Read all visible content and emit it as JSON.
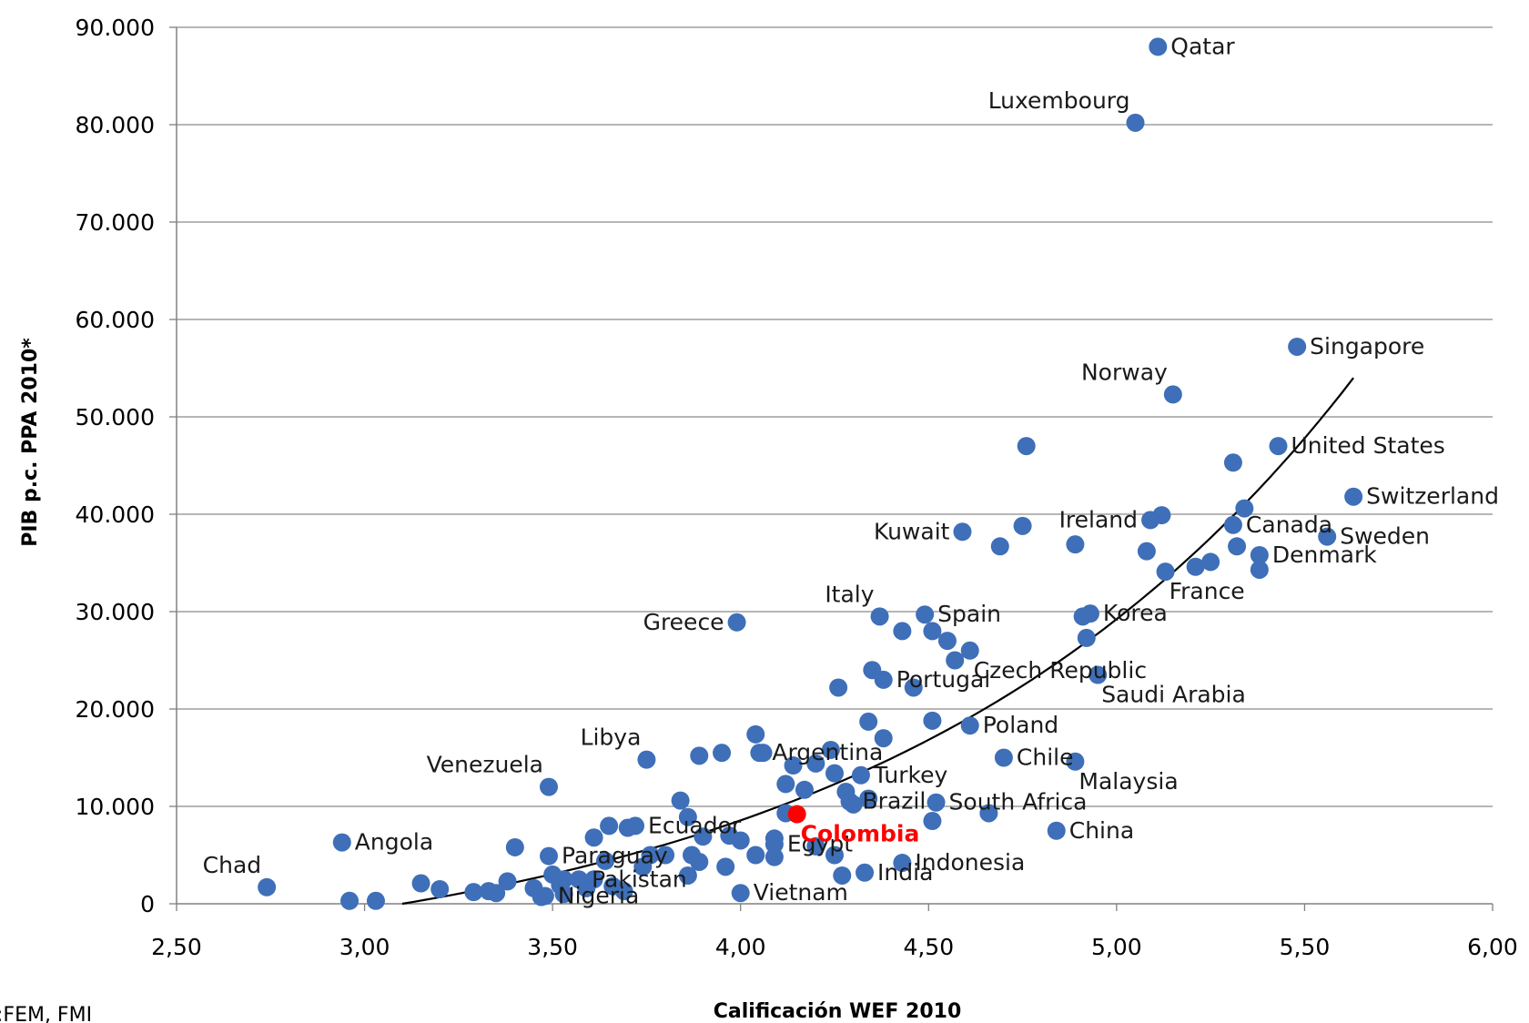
{
  "chart_data": {
    "type": "scatter",
    "xlabel": "Calificación WEF 2010",
    "ylabel": "PIB p.c. PPA 2010*",
    "source_note": ":FEM, FMI",
    "xlim": [
      2.5,
      6.0
    ],
    "ylim": [
      0,
      90000
    ],
    "x_ticks": [
      "2,50",
      "3,00",
      "3,50",
      "4,00",
      "4,50",
      "5,00",
      "5,50",
      "6,00"
    ],
    "x_tick_values": [
      2.5,
      3.0,
      3.5,
      4.0,
      4.5,
      5.0,
      5.5,
      6.0
    ],
    "y_ticks": [
      "0",
      "10.000",
      "20.000",
      "30.000",
      "40.000",
      "50.000",
      "60.000",
      "70.000",
      "80.000",
      "90.000"
    ],
    "y_tick_values": [
      0,
      10000,
      20000,
      30000,
      40000,
      50000,
      60000,
      70000,
      80000,
      90000
    ],
    "grid": "horizontal",
    "point_color": "#3E6FB8",
    "highlight_color": "#FF0000",
    "trend_color": "#000000",
    "trend": {
      "type": "exponential",
      "x_from": 3.1,
      "x_to": 5.63,
      "y_from": 0,
      "y_to": 54000
    },
    "labeled_points": [
      {
        "label": "Qatar",
        "x": 5.11,
        "y": 88000,
        "anchor": "right"
      },
      {
        "label": "Luxembourg",
        "x": 5.05,
        "y": 80200,
        "anchor": "above-left"
      },
      {
        "label": "Singapore",
        "x": 5.48,
        "y": 57200,
        "anchor": "right"
      },
      {
        "label": "Norway",
        "x": 5.15,
        "y": 52300,
        "anchor": "above-left"
      },
      {
        "label": "United States",
        "x": 5.43,
        "y": 47000,
        "anchor": "right"
      },
      {
        "label": "Switzerland",
        "x": 5.63,
        "y": 41800,
        "anchor": "right"
      },
      {
        "label": "Kuwait",
        "x": 4.59,
        "y": 38200,
        "anchor": "left"
      },
      {
        "label": "Ireland",
        "x": 5.09,
        "y": 39400,
        "anchor": "left"
      },
      {
        "label": "Canada",
        "x": 5.31,
        "y": 38900,
        "anchor": "right"
      },
      {
        "label": "Sweden",
        "x": 5.56,
        "y": 37700,
        "anchor": "right"
      },
      {
        "label": "Denmark",
        "x": 5.38,
        "y": 35800,
        "anchor": "right"
      },
      {
        "label": "France",
        "x": 5.13,
        "y": 34100,
        "anchor": "below-right"
      },
      {
        "label": "Italy",
        "x": 4.37,
        "y": 29500,
        "anchor": "above-left"
      },
      {
        "label": "Spain",
        "x": 4.49,
        "y": 29700,
        "anchor": "right"
      },
      {
        "label": "Greece",
        "x": 3.99,
        "y": 28900,
        "anchor": "left"
      },
      {
        "label": "Korea",
        "x": 4.93,
        "y": 29800,
        "anchor": "right"
      },
      {
        "label": "Czech Republic",
        "x": 4.61,
        "y": 26000,
        "anchor": "below-right"
      },
      {
        "label": "Saudi Arabia",
        "x": 4.95,
        "y": 23500,
        "anchor": "below-right"
      },
      {
        "label": "Portugal",
        "x": 4.38,
        "y": 23000,
        "anchor": "right"
      },
      {
        "label": "Poland",
        "x": 4.61,
        "y": 18300,
        "anchor": "right"
      },
      {
        "label": "Libya",
        "x": 3.75,
        "y": 14800,
        "anchor": "above-left"
      },
      {
        "label": "Argentina",
        "x": 4.05,
        "y": 15500,
        "anchor": "right"
      },
      {
        "label": "Chile",
        "x": 4.7,
        "y": 15000,
        "anchor": "right"
      },
      {
        "label": "Malaysia",
        "x": 4.89,
        "y": 14600,
        "anchor": "below-right"
      },
      {
        "label": "Venezuela",
        "x": 3.49,
        "y": 12000,
        "anchor": "above-left"
      },
      {
        "label": "Turkey",
        "x": 4.32,
        "y": 13200,
        "anchor": "right"
      },
      {
        "label": "Brazil",
        "x": 4.29,
        "y": 10500,
        "anchor": "right"
      },
      {
        "label": "South Africa",
        "x": 4.52,
        "y": 10400,
        "anchor": "right"
      },
      {
        "label": "Ecuador",
        "x": 3.72,
        "y": 8000,
        "anchor": "right"
      },
      {
        "label": "Angola",
        "x": 2.94,
        "y": 6300,
        "anchor": "right"
      },
      {
        "label": "China",
        "x": 4.84,
        "y": 7500,
        "anchor": "right"
      },
      {
        "label": "Paraguay",
        "x": 3.49,
        "y": 4900,
        "anchor": "right"
      },
      {
        "label": "Egypt",
        "x": 4.09,
        "y": 6100,
        "anchor": "right"
      },
      {
        "label": "Colombia",
        "x": 4.15,
        "y": 9200,
        "anchor": "below-right",
        "highlight": true
      },
      {
        "label": "Indonesia",
        "x": 4.43,
        "y": 4200,
        "anchor": "right"
      },
      {
        "label": "Chad",
        "x": 2.74,
        "y": 1700,
        "anchor": "above-left"
      },
      {
        "label": "Pakistan",
        "x": 3.57,
        "y": 2500,
        "anchor": "right"
      },
      {
        "label": "India",
        "x": 4.33,
        "y": 3200,
        "anchor": "right"
      },
      {
        "label": "Vietnam",
        "x": 4.0,
        "y": 1100,
        "anchor": "right"
      },
      {
        "label": "Nigeria",
        "x": 3.48,
        "y": 800,
        "anchor": "right"
      }
    ],
    "points": [
      [
        4.76,
        47000
      ],
      [
        5.31,
        45300
      ],
      [
        5.34,
        40600
      ],
      [
        5.12,
        39900
      ],
      [
        4.75,
        38800
      ],
      [
        4.69,
        36700
      ],
      [
        4.89,
        36900
      ],
      [
        5.08,
        36200
      ],
      [
        5.21,
        34600
      ],
      [
        5.25,
        35100
      ],
      [
        5.32,
        36700
      ],
      [
        5.38,
        34300
      ],
      [
        4.91,
        29500
      ],
      [
        4.43,
        28000
      ],
      [
        4.51,
        28000
      ],
      [
        4.55,
        27000
      ],
      [
        4.57,
        25000
      ],
      [
        4.92,
        27300
      ],
      [
        4.35,
        24000
      ],
      [
        4.26,
        22200
      ],
      [
        4.46,
        22200
      ],
      [
        4.51,
        18800
      ],
      [
        4.34,
        18700
      ],
      [
        4.38,
        17000
      ],
      [
        4.04,
        17400
      ],
      [
        4.06,
        15500
      ],
      [
        3.95,
        15500
      ],
      [
        3.89,
        15200
      ],
      [
        4.14,
        14200
      ],
      [
        4.2,
        14400
      ],
      [
        4.24,
        15800
      ],
      [
        4.25,
        13400
      ],
      [
        4.12,
        12300
      ],
      [
        4.17,
        11700
      ],
      [
        4.28,
        11500
      ],
      [
        4.3,
        10200
      ],
      [
        4.34,
        10800
      ],
      [
        3.84,
        10600
      ],
      [
        3.86,
        8900
      ],
      [
        4.12,
        9300
      ],
      [
        4.51,
        8500
      ],
      [
        4.66,
        9300
      ],
      [
        3.61,
        6800
      ],
      [
        3.65,
        8000
      ],
      [
        3.7,
        7800
      ],
      [
        3.4,
        5800
      ],
      [
        3.9,
        6900
      ],
      [
        3.97,
        7000
      ],
      [
        4.0,
        6500
      ],
      [
        4.09,
        6700
      ],
      [
        4.2,
        5900
      ],
      [
        4.25,
        5000
      ],
      [
        3.76,
        5000
      ],
      [
        3.8,
        5000
      ],
      [
        3.87,
        5000
      ],
      [
        3.89,
        4300
      ],
      [
        4.04,
        5000
      ],
      [
        4.09,
        4800
      ],
      [
        3.64,
        4400
      ],
      [
        3.96,
        3800
      ],
      [
        3.74,
        3800
      ],
      [
        3.86,
        2900
      ],
      [
        4.27,
        2900
      ],
      [
        3.5,
        3000
      ],
      [
        3.53,
        2500
      ],
      [
        3.61,
        2500
      ],
      [
        3.66,
        1800
      ],
      [
        3.69,
        1300
      ],
      [
        3.15,
        2100
      ],
      [
        3.2,
        1500
      ],
      [
        3.29,
        1200
      ],
      [
        3.33,
        1300
      ],
      [
        3.35,
        1100
      ],
      [
        3.38,
        2300
      ],
      [
        3.45,
        1600
      ],
      [
        3.53,
        1000
      ],
      [
        3.59,
        1600
      ],
      [
        2.96,
        300
      ],
      [
        3.03,
        300
      ],
      [
        3.47,
        700
      ],
      [
        3.52,
        1900
      ]
    ]
  }
}
